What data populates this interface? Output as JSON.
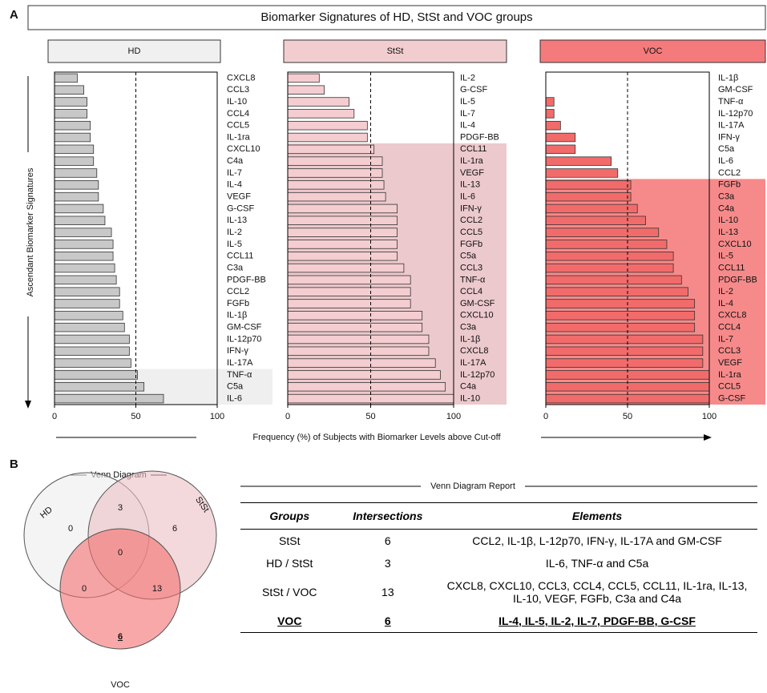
{
  "panel_labels": [
    "A",
    "B"
  ],
  "title": "Biomarker Signatures of HD, StSt and VOC groups",
  "y_label": "Ascendant Biomarker Signatures",
  "x_label": "Frequency (%) of Subjects  with  Biomarker Levels above Cut-off",
  "chart_data": [
    {
      "type": "bar",
      "orientation": "horizontal",
      "title": "HD",
      "header_color": "#f0f0f0",
      "color": "#c8c8c8",
      "highlight_color": "#efefef",
      "categories": [
        "CXCL8",
        "CCL3",
        "IL-10",
        "CCL4",
        "CCL5",
        "IL-1ra",
        "CXCL10",
        "C4a",
        "IL-7",
        "IL-4",
        "VEGF",
        "G-CSF",
        "IL-13",
        "IL-2",
        "IL-5",
        "CCL11",
        "C3a",
        "PDGF-BB",
        "CCL2",
        "FGFb",
        "IL-1β",
        "GM-CSF",
        "IL-12p70",
        "IFN-γ",
        "IL-17A",
        "TNF-α",
        "C5a",
        "IL-6"
      ],
      "values": [
        14,
        18,
        20,
        20,
        22,
        22,
        24,
        24,
        26,
        27,
        27,
        30,
        31,
        35,
        36,
        36,
        37,
        38,
        40,
        40,
        42,
        43,
        46,
        46,
        47,
        51,
        55,
        67
      ],
      "xlim": [
        0,
        100
      ],
      "xticks": [
        0,
        50,
        100
      ],
      "reference_line": 50
    },
    {
      "type": "bar",
      "orientation": "horizontal",
      "title": "StSt",
      "header_color": "#f2cdd0",
      "color": "#f4cdd0",
      "highlight_color": "#ecc9cc",
      "categories": [
        "IL-2",
        "G-CSF",
        "IL-5",
        "IL-7",
        "IL-4",
        "PDGF-BB",
        "CCL11",
        "IL-1ra",
        "VEGF",
        "IL-13",
        "IL-6",
        "IFN-γ",
        "CCL2",
        "CCL5",
        "FGFb",
        "C5a",
        "CCL3",
        "TNF-α",
        "CCL4",
        "GM-CSF",
        "CXCL10",
        "C3a",
        "IL-1β",
        "CXCL8",
        "IL-17A",
        "IL-12p70",
        "C4a",
        "IL-10"
      ],
      "values": [
        19,
        22,
        37,
        40,
        48,
        48,
        52,
        57,
        57,
        58,
        59,
        66,
        66,
        66,
        66,
        66,
        70,
        74,
        74,
        74,
        81,
        81,
        85,
        85,
        89,
        92,
        95,
        100
      ],
      "xlim": [
        0,
        100
      ],
      "xticks": [
        0,
        50,
        100
      ],
      "reference_line": 50
    },
    {
      "type": "bar",
      "orientation": "horizontal",
      "title": "VOC",
      "header_color": "#f47a7c",
      "color": "#f26b6b",
      "highlight_color": "#f68a8a",
      "categories": [
        "IL-1β",
        "GM-CSF",
        "TNF-α",
        "IL-12p70",
        "IL-17A",
        "IFN-γ",
        "C5a",
        "IL-6",
        "CCL2",
        "FGFb",
        "C3a",
        "C4a",
        "IL-10",
        "IL-13",
        "CXCL10",
        "IL-5",
        "CCL11",
        "PDGF-BB",
        "IL-2",
        "IL-4",
        "CXCL8",
        "CCL4",
        "IL-7",
        "CCL3",
        "VEGF",
        "IL-1ra",
        "CCL5",
        "G-CSF"
      ],
      "values": [
        0,
        0,
        5,
        5,
        9,
        18,
        18,
        40,
        44,
        52,
        52,
        56,
        61,
        69,
        74,
        78,
        78,
        83,
        87,
        91,
        91,
        91,
        96,
        96,
        96,
        100,
        100,
        100
      ],
      "xlim": [
        0,
        100
      ],
      "xticks": [
        0,
        50,
        100
      ],
      "reference_line": 50
    }
  ],
  "venn": {
    "title": "Venn Diagram",
    "sets": [
      {
        "name": "HD",
        "color": "#ececec"
      },
      {
        "name": "StSt",
        "color": "#ebbfc3"
      },
      {
        "name": "VOC",
        "color": "#f36e6e"
      }
    ],
    "regions": [
      {
        "count": 0
      },
      {
        "count": 3
      },
      {
        "count": 6
      },
      {
        "count": 0
      },
      {
        "count": 0
      },
      {
        "count": 13
      },
      {
        "count": 6,
        "bold": true
      }
    ]
  },
  "table": {
    "title": "Venn Diagram Report",
    "columns": [
      "Groups",
      "Intersections",
      "Elements"
    ],
    "rows": [
      [
        "StSt",
        "6",
        "CCL2, IL-1β, L-12p70, IFN-γ, IL-17A and GM-CSF"
      ],
      [
        "HD / StSt",
        "3",
        "IL-6, TNF-α and C5a"
      ],
      [
        "StSt / VOC",
        "13",
        "CXCL8, CXCL10, CCL3, CCL4, CCL5, CCL11, IL-1ra, IL-13, IL-10, VEGF, FGFb, C3a and C4a"
      ],
      [
        "VOC",
        "6",
        "IL-4, IL-5, IL-2, IL-7, PDGF-BB, G-CSF"
      ]
    ],
    "emphasized_rows": [
      3
    ]
  }
}
